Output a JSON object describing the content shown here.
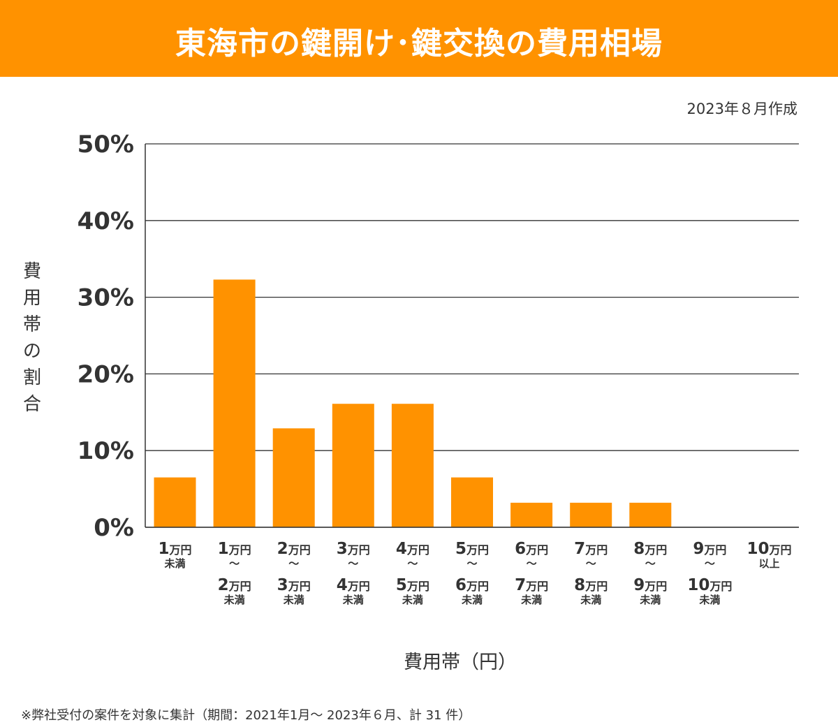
{
  "header": {
    "title": "東海市の鍵開け･鍵交換の費用相場"
  },
  "created": "2023年８月作成",
  "footnote": "※弊社受付の案件を対象に集計（期間：2021年1月～ 2023年６月、計 31 件）",
  "colors": {
    "accent": "#ff9200",
    "bar": "#ff9200",
    "grid": "#333333",
    "text": "#333333"
  },
  "chart_data": {
    "type": "bar",
    "title": "東海市の鍵開け･鍵交換の費用相場",
    "xlabel": "費用帯（円）",
    "ylabel": "費用帯の割合",
    "ylim": [
      0,
      50
    ],
    "yticks": [
      0,
      10,
      20,
      30,
      40,
      50
    ],
    "ytick_labels": [
      "0%",
      "10%",
      "20%",
      "30%",
      "40%",
      "50%"
    ],
    "grid": true,
    "categories": [
      "1万円未満",
      "1万円〜2万円未満",
      "2万円〜3万円未満",
      "3万円〜4万円未満",
      "4万円〜5万円未満",
      "5万円〜6万円未満",
      "6万円〜7万円未満",
      "7万円〜8万円未満",
      "8万円〜9万円未満",
      "9万円〜10万円未満",
      "10万円以上"
    ],
    "category_parts": [
      {
        "from": "1",
        "to": null,
        "suffix": "未満"
      },
      {
        "from": "1",
        "to": "2",
        "suffix": "未満"
      },
      {
        "from": "2",
        "to": "3",
        "suffix": "未満"
      },
      {
        "from": "3",
        "to": "4",
        "suffix": "未満"
      },
      {
        "from": "4",
        "to": "5",
        "suffix": "未満"
      },
      {
        "from": "5",
        "to": "6",
        "suffix": "未満"
      },
      {
        "from": "6",
        "to": "7",
        "suffix": "未満"
      },
      {
        "from": "7",
        "to": "8",
        "suffix": "未満"
      },
      {
        "from": "8",
        "to": "9",
        "suffix": "未満"
      },
      {
        "from": "9",
        "to": "10",
        "suffix": "未満"
      },
      {
        "from": "10",
        "to": null,
        "suffix": "以上"
      }
    ],
    "unit": "万円",
    "range_mark": "〜",
    "values": [
      6.5,
      32.3,
      12.9,
      16.1,
      16.1,
      6.5,
      3.2,
      3.2,
      3.2,
      0,
      0
    ]
  }
}
